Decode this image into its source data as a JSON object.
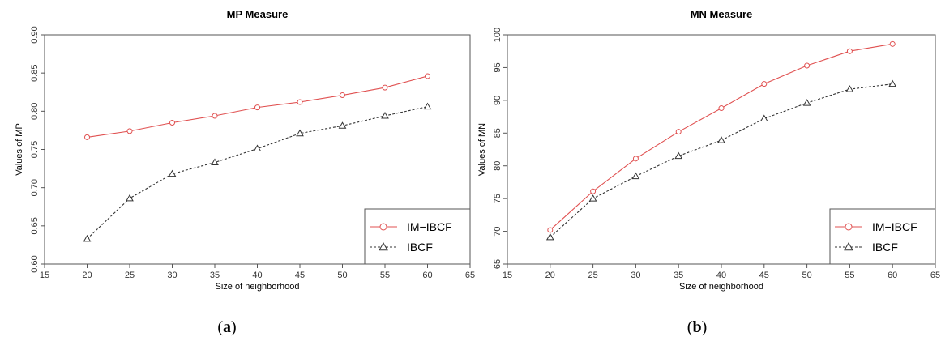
{
  "chart_data": [
    {
      "type": "line",
      "title": "MP Measure",
      "xlabel": "Size of neighborhood",
      "ylabel": "Values of MP",
      "xlim": [
        15,
        65
      ],
      "ylim": [
        0.6,
        0.9
      ],
      "xticks": [
        "15",
        "20",
        "25",
        "30",
        "35",
        "40",
        "45",
        "50",
        "55",
        "60",
        "65"
      ],
      "yticks": [
        "0.60",
        "0.65",
        "0.70",
        "0.75",
        "0.80",
        "0.85",
        "0.90"
      ],
      "x": [
        20,
        25,
        30,
        35,
        40,
        45,
        50,
        55,
        60
      ],
      "series": [
        {
          "name": "IM−IBCF",
          "marker": "circle",
          "style": "solid",
          "color": "#e05050",
          "values": [
            0.766,
            0.774,
            0.785,
            0.794,
            0.805,
            0.812,
            0.821,
            0.831,
            0.846
          ]
        },
        {
          "name": "IBCF",
          "marker": "triangle",
          "style": "dashed",
          "color": "#333333",
          "values": [
            0.633,
            0.686,
            0.718,
            0.733,
            0.751,
            0.771,
            0.781,
            0.794,
            0.806
          ]
        }
      ],
      "legend": "bottom-right",
      "caption_letter": "a"
    },
    {
      "type": "line",
      "title": "MN Measure",
      "xlabel": "Size of neighborhood",
      "ylabel": "Values of MN",
      "xlim": [
        15,
        65
      ],
      "ylim": [
        65,
        100
      ],
      "xticks": [
        "15",
        "20",
        "25",
        "30",
        "35",
        "40",
        "45",
        "50",
        "55",
        "60",
        "65"
      ],
      "yticks": [
        "65",
        "70",
        "75",
        "80",
        "85",
        "90",
        "95",
        "100"
      ],
      "x": [
        20,
        25,
        30,
        35,
        40,
        45,
        50,
        55,
        60
      ],
      "series": [
        {
          "name": "IM−IBCF",
          "marker": "circle",
          "style": "solid",
          "color": "#e05050",
          "values": [
            70.2,
            76.1,
            81.1,
            85.2,
            88.8,
            92.5,
            95.3,
            97.5,
            98.6
          ]
        },
        {
          "name": "IBCF",
          "marker": "triangle",
          "style": "dashed",
          "color": "#333333",
          "values": [
            69.1,
            75.0,
            78.4,
            81.5,
            83.9,
            87.2,
            89.6,
            91.7,
            92.5
          ]
        }
      ],
      "legend": "bottom-right",
      "caption_letter": "b"
    }
  ]
}
